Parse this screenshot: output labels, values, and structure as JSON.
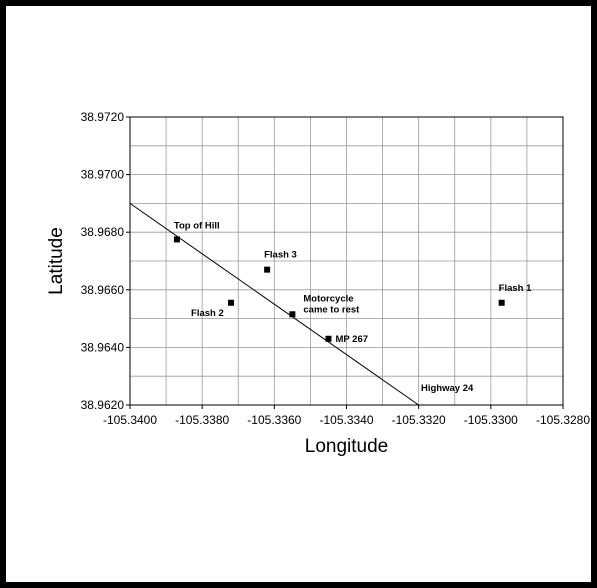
{
  "chart_data": {
    "type": "scatter",
    "title": "",
    "xlabel": "Longitude",
    "ylabel": "Latitude",
    "xlim": [
      -105.34,
      -105.328
    ],
    "ylim": [
      38.962,
      38.972
    ],
    "grid": true,
    "x_ticks": [
      "-105.3400",
      "-105.3380",
      "-105.3360",
      "-105.3340",
      "-105.3320",
      "-105.3300",
      "-105.3280"
    ],
    "y_ticks": [
      "38.9620",
      "38.9640",
      "38.9660",
      "38.9680",
      "38.9700",
      "38.9720"
    ],
    "x_tick_values": [
      -105.34,
      -105.338,
      -105.336,
      -105.334,
      -105.332,
      -105.33,
      -105.328
    ],
    "y_tick_values": [
      38.962,
      38.964,
      38.966,
      38.968,
      38.97,
      38.972
    ],
    "points": [
      {
        "label": "Top of Hill",
        "x": -105.3387,
        "y": 38.96775
      },
      {
        "label": "Flash 3",
        "x": -105.3362,
        "y": 38.9667
      },
      {
        "label": "Flash 2",
        "x": -105.3372,
        "y": 38.96555
      },
      {
        "label": "Motorcycle came to rest",
        "label_lines": [
          "Motorcycle",
          "came to rest"
        ],
        "x": -105.3355,
        "y": 38.96515
      },
      {
        "label": "MP 267",
        "x": -105.3345,
        "y": 38.9643
      },
      {
        "label": "Flash 1",
        "x": -105.3297,
        "y": 38.96555
      }
    ],
    "line": {
      "label": "Highway 24",
      "x": [
        -105.34,
        -105.332
      ],
      "y": [
        38.969,
        38.962
      ]
    }
  }
}
